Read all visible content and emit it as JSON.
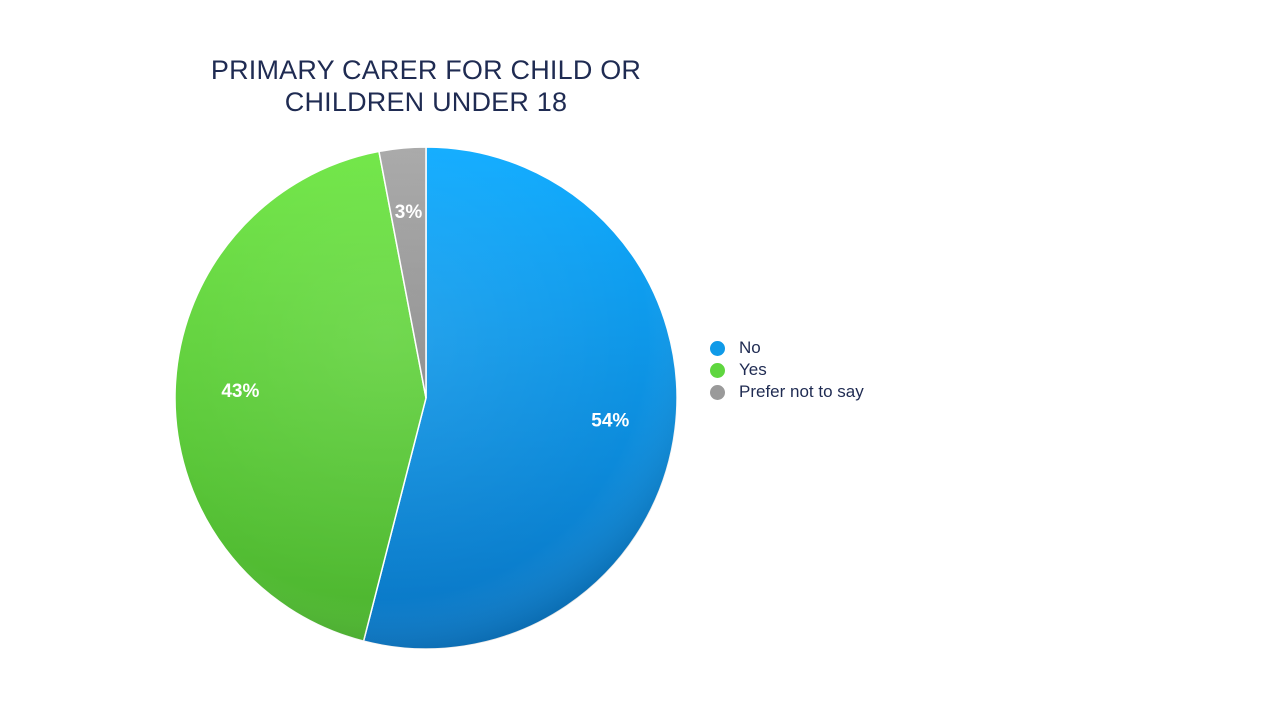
{
  "chart_data": {
    "type": "pie",
    "title_lines": [
      "PRIMARY CARER FOR CHILD OR",
      "CHILDREN UNDER 18"
    ],
    "slices": [
      {
        "label": "No",
        "value": 54,
        "data_label": "54%",
        "color": "#0f9ae8"
      },
      {
        "label": "Yes",
        "value": 43,
        "data_label": "43%",
        "color": "#5fd63f"
      },
      {
        "label": "Prefer not to say",
        "value": 3,
        "data_label": "3%",
        "color": "#9a9a9a"
      }
    ],
    "legend_position": "right",
    "start_angle_deg": 0,
    "direction": "clockwise"
  }
}
